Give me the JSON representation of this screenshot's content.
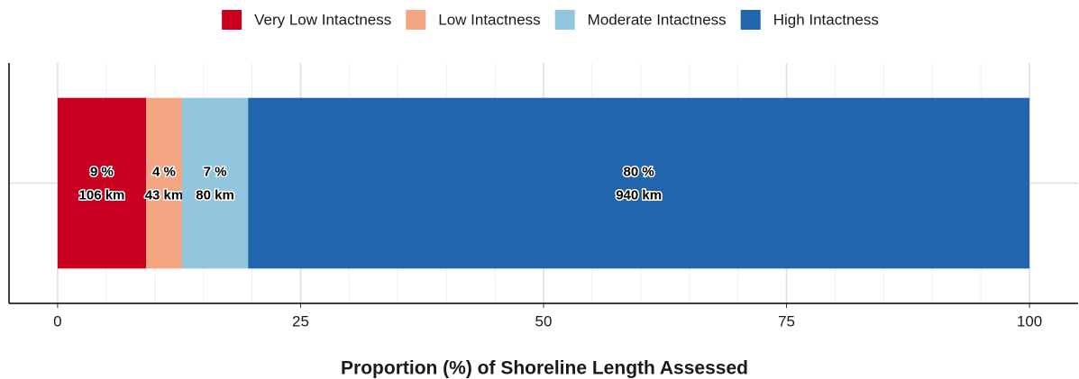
{
  "chart_data": {
    "type": "stacked_barh",
    "categories": [
      null
    ],
    "series": [
      {
        "name": "Very Low Intactness",
        "color": "#ca0020",
        "values": [
          9.1
        ],
        "value_labels": [
          "9 %"
        ],
        "length_labels": [
          "106 km"
        ]
      },
      {
        "name": "Low Intactness",
        "color": "#f4a582",
        "values": [
          3.7
        ],
        "value_labels": [
          "4 %"
        ],
        "length_labels": [
          "43 km"
        ]
      },
      {
        "name": "Moderate Intactness",
        "color": "#92c5de",
        "values": [
          6.8
        ],
        "value_labels": [
          "7 %"
        ],
        "length_labels": [
          "80 km"
        ]
      },
      {
        "name": "High Intactness",
        "color": "#2166ac",
        "values": [
          80.4
        ],
        "value_labels": [
          "80 %"
        ],
        "length_labels": [
          "940 km"
        ]
      }
    ],
    "xlabel": "Proportion (%) of Shoreline Length Assessed",
    "xlim": [
      -5,
      105
    ],
    "xticks": [
      0,
      25,
      50,
      75,
      100
    ],
    "xticks_minor": [
      5,
      10,
      15,
      20,
      30,
      35,
      40,
      45,
      55,
      60,
      65,
      70,
      80,
      85,
      90,
      95
    ],
    "grid": true,
    "legend": "top"
  }
}
